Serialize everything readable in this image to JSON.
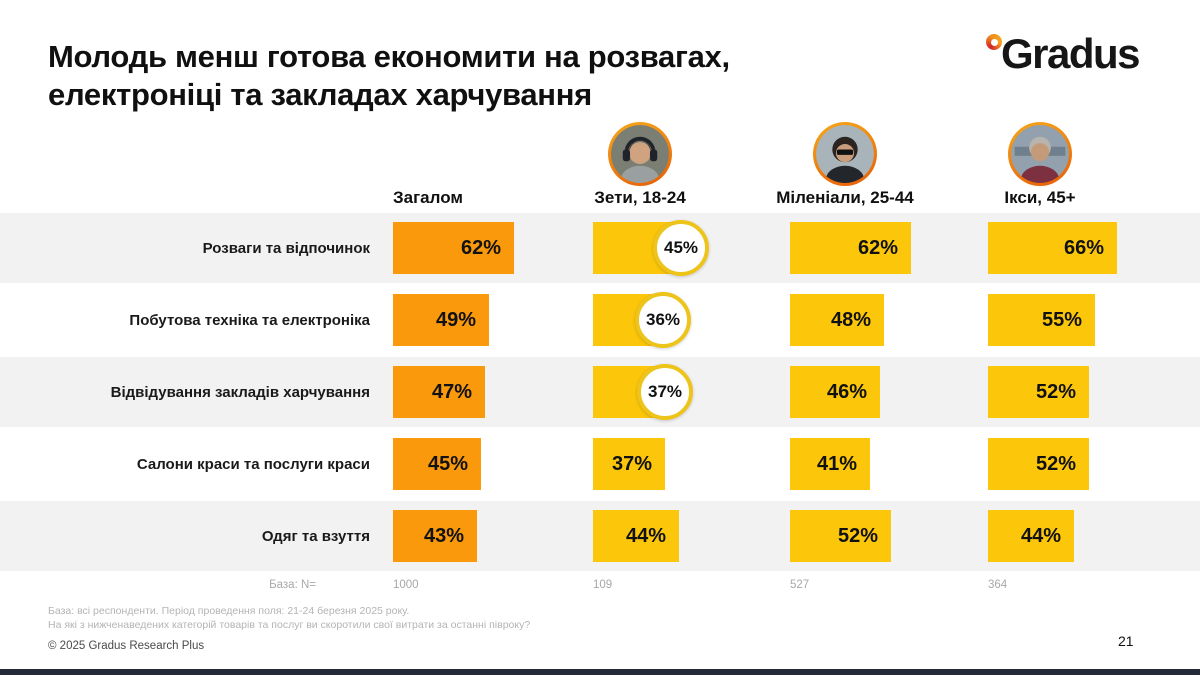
{
  "slide": {
    "title_line1": "Молодь менш готова економити на розвагах,",
    "title_line2": "електроніці та закладах харчування",
    "footnote_line1": "База: всі респонденти. Період проведення поля: 21-24 березня 2025 року.",
    "footnote_line2": "На які з нижченаведених категорій товарів та послуг ви скоротили свої витрати за останні півроку?",
    "copyright": "© 2025 Gradus Research Plus",
    "page_number": "21"
  },
  "logo": {
    "text": "Gradus"
  },
  "colors": {
    "accent_orange": "#F9990B",
    "accent_yellow": "#FCC60A",
    "badge_ring": "#EDC41C",
    "row_stripe": "#F2F2F2",
    "row_plain": "#FFFFFF",
    "footer_bar": "#232B38",
    "logo_dot_red": "#D2232A",
    "logo_dot_orange": "#F08C1E"
  },
  "chart_data": {
    "type": "bar",
    "title": "Молодь менш готова економити на розвагах, електроніці та закладах харчування",
    "unit": "%",
    "xlim": [
      0,
      100
    ],
    "categories": [
      "Розваги та відпочинок",
      "Побутова техніка та електроніка",
      "Відвідування закладів харчування",
      "Салони краси та послуги краси",
      "Одяг та взуття"
    ],
    "series": [
      {
        "name": "Загалом",
        "values": [
          62,
          49,
          47,
          45,
          43
        ],
        "labels": [
          "62%",
          "49%",
          "47%",
          "45%",
          "43%"
        ],
        "color": "#F9990B",
        "base_n": "1000",
        "circled": []
      },
      {
        "name": "Зети, 18-24",
        "values": [
          45,
          36,
          37,
          37,
          44
        ],
        "labels": [
          "45%",
          "36%",
          "37%",
          "37%",
          "44%"
        ],
        "color": "#FCC60A",
        "base_n": "109",
        "circled": [
          0,
          1,
          2
        ],
        "avatar": "gen-z-avatar"
      },
      {
        "name": "Міленіали, 25-44",
        "values": [
          62,
          48,
          46,
          41,
          52
        ],
        "labels": [
          "62%",
          "48%",
          "46%",
          "41%",
          "52%"
        ],
        "color": "#FCC60A",
        "base_n": "527",
        "circled": [],
        "avatar": "millennial-avatar"
      },
      {
        "name": "Ікси, 45+",
        "values": [
          66,
          55,
          52,
          52,
          44
        ],
        "labels": [
          "66%",
          "55%",
          "52%",
          "52%",
          "44%"
        ],
        "color": "#FCC60A",
        "base_n": "364",
        "circled": [],
        "avatar": "gen-x-avatar"
      }
    ],
    "base_label": "База: N=",
    "legend_position": "top",
    "grid": false
  }
}
